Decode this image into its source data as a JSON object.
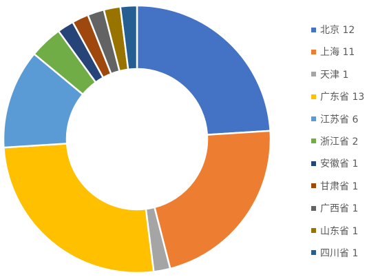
{
  "chart_data": {
    "type": "pie",
    "subtype": "donut",
    "categories": [
      "北京",
      "上海",
      "天津",
      "广东省",
      "江苏省",
      "浙江省",
      "安徽省",
      "甘肃省",
      "广西省",
      "山东省",
      "四川省"
    ],
    "values": [
      12,
      11,
      1,
      13,
      6,
      2,
      1,
      1,
      1,
      1,
      1
    ],
    "colors": [
      "#4472C4",
      "#ED7D31",
      "#A5A5A5",
      "#FFC000",
      "#5B9BD5",
      "#70AD47",
      "#264478",
      "#9E480E",
      "#636363",
      "#997300",
      "#255E91"
    ],
    "legend_labels": [
      "北京 12",
      "上海 11",
      "天津 1",
      "广东省 13",
      "江苏省 6",
      "浙江省 2",
      "安徽省 1",
      "甘肃省 1",
      "广西省 1",
      "山东省 1",
      "四川省 1"
    ],
    "legend_position": "right",
    "title": ""
  }
}
